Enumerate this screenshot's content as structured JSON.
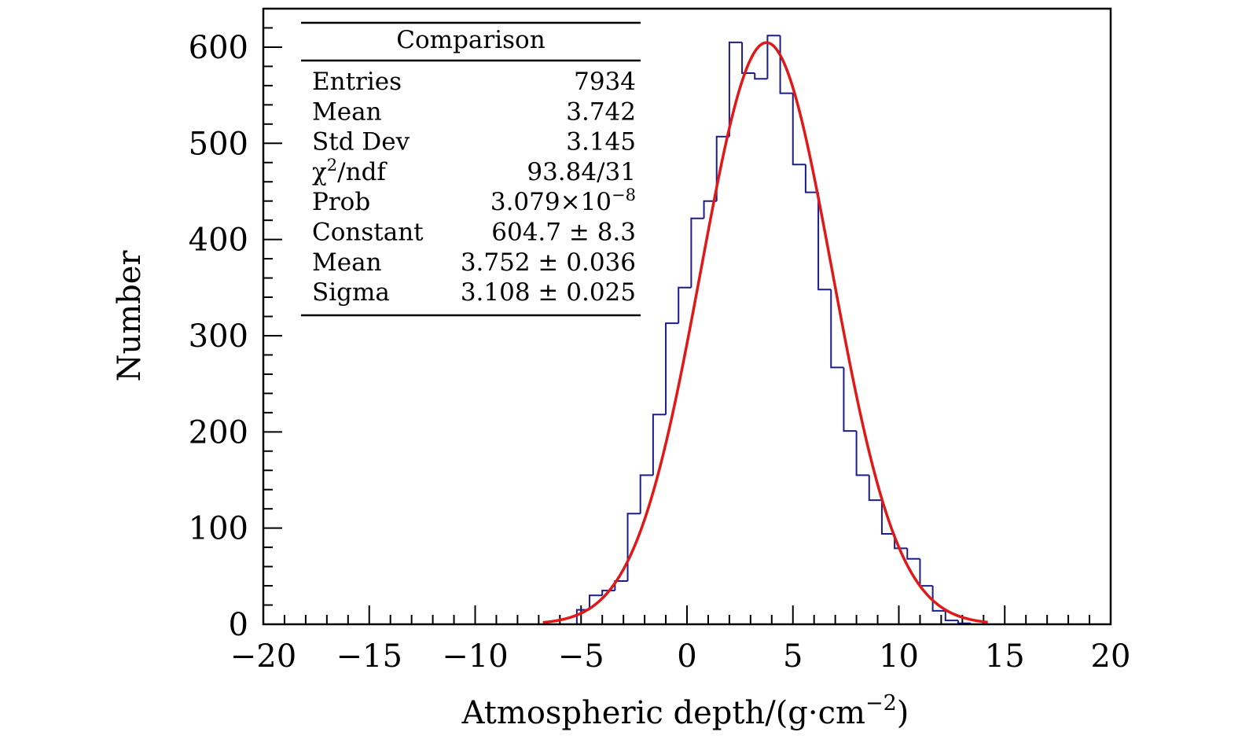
{
  "chart_data": {
    "type": "histogram",
    "title": "",
    "xlabel": "Atmospheric depth/(g·cm",
    "xlabel_sup": "−2",
    "xlabel_close": ")",
    "ylabel": "Number",
    "xlim": [
      -20,
      20
    ],
    "ylim": [
      0,
      640
    ],
    "grid": false,
    "x_ticks": [
      {
        "value": -20,
        "label": "−20"
      },
      {
        "value": -15,
        "label": "−15"
      },
      {
        "value": -10,
        "label": "−10"
      },
      {
        "value": -5,
        "label": "−5"
      },
      {
        "value": 0,
        "label": "0"
      },
      {
        "value": 5,
        "label": "5"
      },
      {
        "value": 10,
        "label": "10"
      },
      {
        "value": 15,
        "label": "15"
      },
      {
        "value": 20,
        "label": "20"
      }
    ],
    "y_ticks": [
      {
        "value": 0,
        "label": "0"
      },
      {
        "value": 100,
        "label": "100"
      },
      {
        "value": 200,
        "label": "200"
      },
      {
        "value": 300,
        "label": "300"
      },
      {
        "value": 400,
        "label": "400"
      },
      {
        "value": 500,
        "label": "500"
      },
      {
        "value": 600,
        "label": "600"
      }
    ],
    "histogram": {
      "name": "Comparison",
      "color": "#1c1c8c",
      "bin_width": 0.6,
      "bin_edges_start": -5.2,
      "counts": [
        15,
        30,
        35,
        45,
        115,
        155,
        218,
        313,
        350,
        422,
        440,
        507,
        605,
        573,
        567,
        612,
        552,
        478,
        449,
        348,
        267,
        201,
        155,
        129,
        94,
        79,
        68,
        40,
        14,
        4,
        1,
        0
      ]
    },
    "fit": {
      "function": "gaus",
      "color": "#e01818",
      "constant": 604.7,
      "mean": 3.752,
      "sigma": 3.108,
      "x_range": [
        -6.8,
        14.2
      ]
    },
    "legend_position": "top-left"
  },
  "stats_box": {
    "title": "Comparison",
    "rows": [
      {
        "label": "Entries",
        "value": "7934"
      },
      {
        "label": "Mean",
        "value": "3.742"
      },
      {
        "label": "Std Dev",
        "value": "3.145"
      },
      {
        "label": "χ",
        "label_sup": "2",
        "label_tail": "/ndf",
        "value": "93.84/31"
      },
      {
        "label": "Prob",
        "value": "3.079×10",
        "value_sup": "−8"
      },
      {
        "label": "Constant",
        "value": "604.7 ± 8.3"
      },
      {
        "label": "Mean",
        "value": "3.752 ± 0.036"
      },
      {
        "label": "Sigma",
        "value": "3.108 ± 0.025"
      }
    ]
  }
}
